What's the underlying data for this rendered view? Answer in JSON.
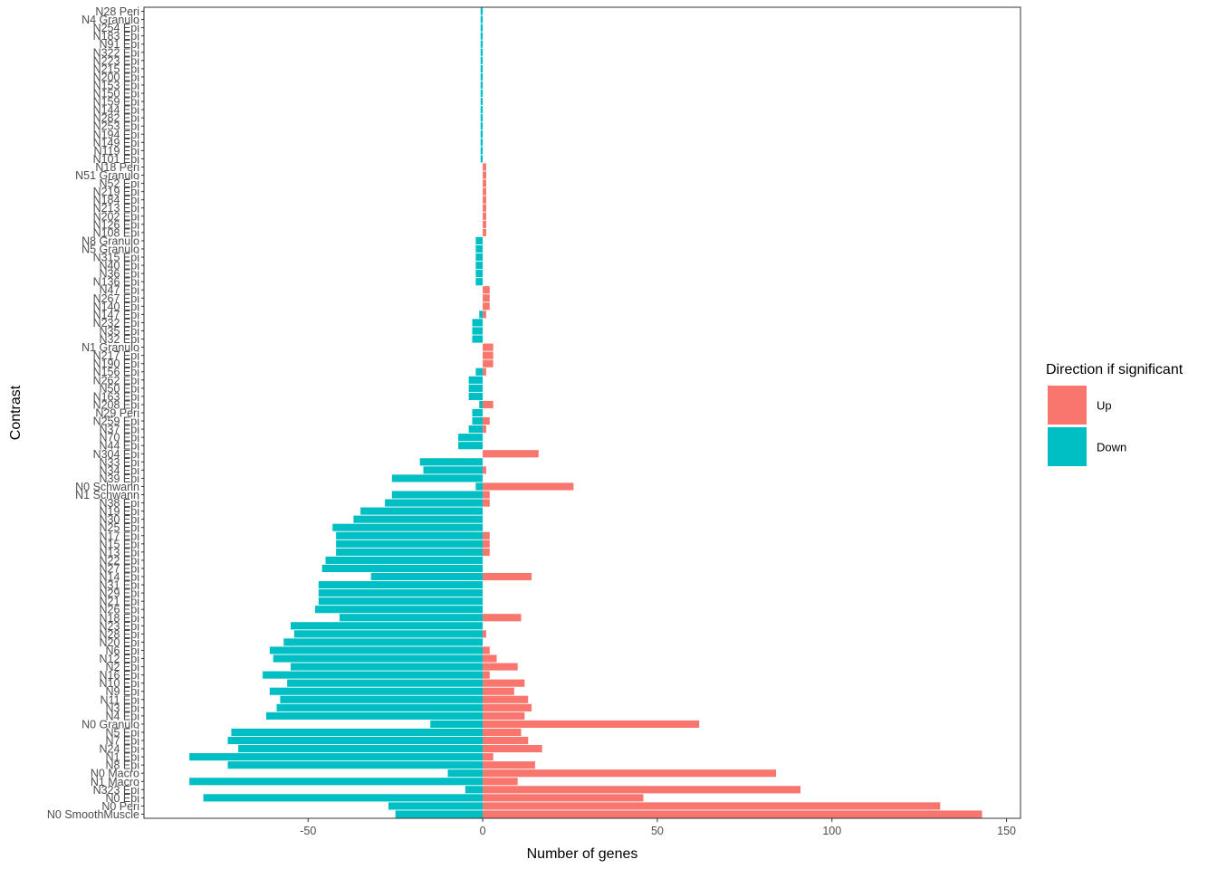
{
  "chart_data": {
    "type": "bar",
    "orientation": "horizontal",
    "xlabel": "Number of genes",
    "ylabel": "Contrast",
    "xlim": [
      -97,
      154
    ],
    "xticks": [
      -50,
      0,
      50,
      100,
      150
    ],
    "grid": false,
    "legend": {
      "title": "Direction if significant",
      "placement": "right",
      "entries": [
        {
          "label": "Up",
          "color": "#F8766D"
        },
        {
          "label": "Down",
          "color": "#00BFC4"
        }
      ]
    },
    "categories": [
      "N28 Peri",
      "N4 Granulo",
      "N254 Epi",
      "N183 Epi",
      "N91 Epi",
      "N322 Epi",
      "N223 Epi",
      "N215 Epi",
      "N200 Epi",
      "N153 Epi",
      "N150 Epi",
      "N159 Epi",
      "N144 Epi",
      "N282 Epi",
      "N253 Epi",
      "N194 Epi",
      "N149 Epi",
      "N119 Epi",
      "N101 Epi",
      "N18 Peri",
      "N51 Granulo",
      "N52 Epi",
      "N219 Epi",
      "N184 Epi",
      "N213 Epi",
      "N202 Epi",
      "N126 Epi",
      "N108 Epi",
      "N8 Granulo",
      "N5 Granulo",
      "N315 Epi",
      "N40 Epi",
      "N36 Epi",
      "N136 Epi",
      "N47 Epi",
      "N267 Epi",
      "N140 Epi",
      "N147 Epi",
      "N232 Epi",
      "N35 Epi",
      "N32 Epi",
      "N1 Granulo",
      "N217 Epi",
      "N190 Epi",
      "N156 Epi",
      "N262 Epi",
      "N50 Epi",
      "N163 Epi",
      "N208 Epi",
      "N29 Peri",
      "N259 Epi",
      "N37 Epi",
      "N70 Epi",
      "N44 Epi",
      "N304 Epi",
      "N33 Epi",
      "N34 Epi",
      "N39 Epi",
      "N0 Schwann",
      "N1 Schwann",
      "N38 Epi",
      "N19 Epi",
      "N30 Epi",
      "N25 Epi",
      "N17 Epi",
      "N15 Epi",
      "N13 Epi",
      "N22 Epi",
      "N27 Epi",
      "N14 Epi",
      "N31 Epi",
      "N29 Epi",
      "N21 Epi",
      "N26 Epi",
      "N18 Epi",
      "N23 Epi",
      "N28 Epi",
      "N20 Epi",
      "N6 Epi",
      "N12 Epi",
      "N2 Epi",
      "N16 Epi",
      "N10 Epi",
      "N9 Epi",
      "N11 Epi",
      "N3 Epi",
      "N4 Epi",
      "N0 Granulo",
      "N5 Epi",
      "N7 Epi",
      "N24 Epi",
      "N1 Epi",
      "N8 Epi",
      "N0 Macro",
      "N1 Macro",
      "N323 Epi",
      "N0 Epi",
      "N0 Peri",
      "N0 SmoothMuscle"
    ],
    "series": [
      {
        "name": "Up",
        "color": "#F8766D",
        "values": [
          0,
          0,
          0,
          0,
          0,
          0,
          0,
          0,
          0,
          0,
          0,
          0,
          0,
          0,
          0,
          0,
          0,
          0,
          0,
          1,
          1,
          1,
          1,
          1,
          1,
          1,
          1,
          1,
          0,
          0,
          0,
          0,
          0,
          0,
          2,
          2,
          2,
          1,
          0,
          0,
          0,
          3,
          3,
          3,
          1,
          0,
          0,
          0,
          3,
          0,
          2,
          1,
          0,
          0,
          16,
          0,
          1,
          0,
          26,
          2,
          2,
          0,
          0,
          0,
          2,
          2,
          2,
          0,
          0,
          14,
          0,
          0,
          0,
          0,
          11,
          0,
          1,
          0,
          2,
          4,
          10,
          2,
          12,
          9,
          13,
          14,
          12,
          62,
          11,
          13,
          17,
          3,
          15,
          84,
          10,
          91,
          46,
          131,
          143
        ]
      },
      {
        "name": "Down",
        "color": "#00BFC4",
        "values": [
          -0.6,
          -0.6,
          -0.6,
          -0.6,
          -0.6,
          -0.6,
          -0.6,
          -0.6,
          -0.6,
          -0.6,
          -0.6,
          -0.6,
          -0.6,
          -0.6,
          -0.6,
          -0.6,
          -0.6,
          -0.6,
          -0.6,
          0,
          0,
          0,
          0,
          0,
          0,
          0,
          0,
          0,
          -2,
          -2,
          -2,
          -2,
          -2,
          -2,
          0,
          0,
          0,
          -1,
          -3,
          -3,
          -3,
          0,
          0,
          0,
          -2,
          -4,
          -4,
          -4,
          -1,
          -3,
          -3,
          -4,
          -7,
          -7,
          0,
          -18,
          -17,
          -26,
          -2,
          -26,
          -28,
          -35,
          -37,
          -43,
          -42,
          -42,
          -42,
          -45,
          -46,
          -32,
          -47,
          -47,
          -47,
          -48,
          -41,
          -55,
          -54,
          -57,
          -61,
          -60,
          -55,
          -63,
          -56,
          -61,
          -58,
          -59,
          -62,
          -15,
          -72,
          -73,
          -70,
          -84,
          -73,
          -10,
          -84,
          -5,
          -80,
          -27,
          -25
        ]
      }
    ]
  }
}
